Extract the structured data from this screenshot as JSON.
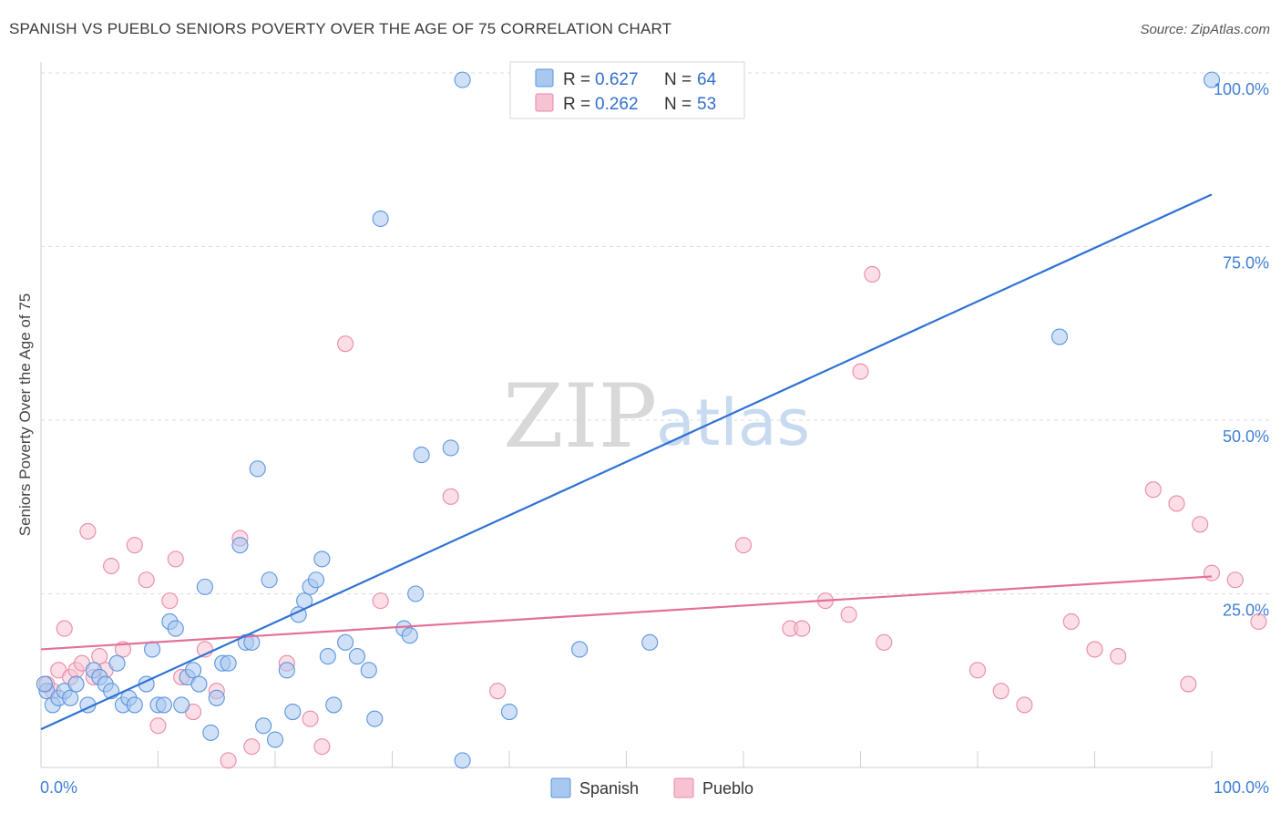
{
  "title": "SPANISH VS PUEBLO SENIORS POVERTY OVER THE AGE OF 75 CORRELATION CHART",
  "source": "Source: ZipAtlas.com",
  "watermark": {
    "zip": "ZIP",
    "atlas": "atlas"
  },
  "legend": {
    "rows": [
      {
        "r_label": "R =",
        "r_value": "0.627",
        "n_label": "N =",
        "n_value": "64"
      },
      {
        "r_label": "R =",
        "r_value": "0.262",
        "n_label": "N =",
        "n_value": "53"
      }
    ]
  },
  "colors": {
    "spanish_fill": "#a9c8f0",
    "spanish_stroke": "#5b95de",
    "spanish_line": "#2f72d4",
    "pueblo_fill": "#f7c2d2",
    "pueblo_stroke": "#ea8aa8",
    "pueblo_line": "#e4709a",
    "tick_text": "#3f7fd6",
    "grid": "#dddddd"
  },
  "chart_data": {
    "type": "scatter",
    "title": "SPANISH VS PUEBLO SENIORS POVERTY OVER THE AGE OF 75 CORRELATION CHART",
    "xlabel": "",
    "ylabel": "Seniors Poverty Over the Age of 75",
    "xlim": [
      0,
      100
    ],
    "ylim": [
      0,
      100
    ],
    "x_tick_labels": [
      "0.0%",
      "100.0%"
    ],
    "y_tick_labels": [
      "25.0%",
      "50.0%",
      "75.0%",
      "100.0%"
    ],
    "y_ticks": [
      25,
      50,
      75,
      100
    ],
    "grid": true,
    "legend_position": "top-center",
    "series": [
      {
        "name": "Spanish",
        "r": 0.627,
        "n": 64,
        "trend": {
          "x": [
            0,
            100
          ],
          "y": [
            5.5,
            82.5
          ]
        },
        "points": [
          [
            0.5,
            11
          ],
          [
            1,
            9
          ],
          [
            1.5,
            10
          ],
          [
            2,
            11
          ],
          [
            2.5,
            10
          ],
          [
            3,
            12
          ],
          [
            4,
            9
          ],
          [
            4.5,
            14
          ],
          [
            5,
            13
          ],
          [
            5.5,
            12
          ],
          [
            6,
            11
          ],
          [
            6.5,
            15
          ],
          [
            7,
            9
          ],
          [
            7.5,
            10
          ],
          [
            8,
            9
          ],
          [
            9,
            12
          ],
          [
            9.5,
            17
          ],
          [
            10,
            9
          ],
          [
            10.5,
            9
          ],
          [
            11,
            21
          ],
          [
            11.5,
            20
          ],
          [
            12,
            9
          ],
          [
            12.5,
            13
          ],
          [
            13,
            14
          ],
          [
            13.5,
            12
          ],
          [
            14,
            26
          ],
          [
            14.5,
            5
          ],
          [
            15,
            10
          ],
          [
            15.5,
            15
          ],
          [
            16,
            15
          ],
          [
            17,
            32
          ],
          [
            17.5,
            18
          ],
          [
            18,
            18
          ],
          [
            18.5,
            43
          ],
          [
            19,
            6
          ],
          [
            19.5,
            27
          ],
          [
            20,
            4
          ],
          [
            21,
            14
          ],
          [
            21.5,
            8
          ],
          [
            22,
            22
          ],
          [
            22.5,
            24
          ],
          [
            23,
            26
          ],
          [
            23.5,
            27
          ],
          [
            24,
            30
          ],
          [
            24.5,
            16
          ],
          [
            25,
            9
          ],
          [
            26,
            18
          ],
          [
            27,
            16
          ],
          [
            28,
            14
          ],
          [
            28.5,
            7
          ],
          [
            29,
            79
          ],
          [
            31,
            20
          ],
          [
            31.5,
            19
          ],
          [
            32,
            25
          ],
          [
            32.5,
            45
          ],
          [
            35,
            46
          ],
          [
            36,
            1
          ],
          [
            36,
            99
          ],
          [
            40,
            8
          ],
          [
            46,
            17
          ],
          [
            52,
            18
          ],
          [
            87,
            62
          ],
          [
            100,
            99
          ],
          [
            0.3,
            12
          ]
        ]
      },
      {
        "name": "Pueblo",
        "r": 0.262,
        "n": 53,
        "trend": {
          "x": [
            0,
            100
          ],
          "y": [
            17,
            27.5
          ]
        },
        "points": [
          [
            0.5,
            12
          ],
          [
            1,
            11
          ],
          [
            1.5,
            14
          ],
          [
            2,
            20
          ],
          [
            2.5,
            13
          ],
          [
            3,
            14
          ],
          [
            3.5,
            15
          ],
          [
            4,
            34
          ],
          [
            4.5,
            13
          ],
          [
            5,
            16
          ],
          [
            5.5,
            14
          ],
          [
            6,
            29
          ],
          [
            7,
            17
          ],
          [
            8,
            32
          ],
          [
            9,
            27
          ],
          [
            10,
            6
          ],
          [
            11,
            24
          ],
          [
            11.5,
            30
          ],
          [
            12,
            13
          ],
          [
            13,
            8
          ],
          [
            14,
            17
          ],
          [
            15,
            11
          ],
          [
            16,
            1
          ],
          [
            17,
            33
          ],
          [
            18,
            3
          ],
          [
            21,
            15
          ],
          [
            23,
            7
          ],
          [
            24,
            3
          ],
          [
            26,
            61
          ],
          [
            29,
            24
          ],
          [
            35,
            39
          ],
          [
            39,
            11
          ],
          [
            60,
            32
          ],
          [
            64,
            20
          ],
          [
            65,
            20
          ],
          [
            67,
            24
          ],
          [
            69,
            22
          ],
          [
            70,
            57
          ],
          [
            71,
            71
          ],
          [
            72,
            18
          ],
          [
            80,
            14
          ],
          [
            82,
            11
          ],
          [
            84,
            9
          ],
          [
            88,
            21
          ],
          [
            90,
            17
          ],
          [
            92,
            16
          ],
          [
            95,
            40
          ],
          [
            97,
            38
          ],
          [
            98,
            12
          ],
          [
            99,
            35
          ],
          [
            100,
            28
          ],
          [
            102,
            27
          ],
          [
            104,
            21
          ]
        ]
      }
    ]
  },
  "bottom_legend": {
    "items": [
      "Spanish",
      "Pueblo"
    ]
  }
}
